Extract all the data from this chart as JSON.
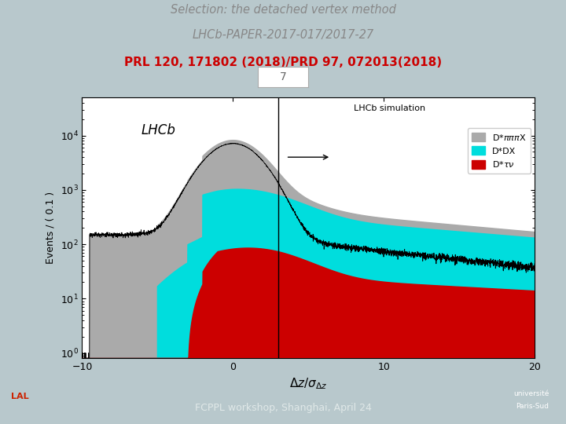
{
  "title_line1": "Selection: the detached vertex method",
  "title_line2": "LHCb-PAPER-2017-017/2017-27",
  "title_line3": "PRL 120, 171802 (2018)/PRD 97, 072013(2018)",
  "slide_number": "7",
  "footer_text": "FCPPL workshop, Shanghai, April 24",
  "slide_bg": "#b8c8cc",
  "title_color1": "#888888",
  "title_color2": "#cc0000",
  "footer_bg": "#7a9a9a",
  "footer_text_color": "#e0e8e8",
  "xlabel": "$\\Delta z/\\sigma_{\\Delta z}$",
  "ylabel": "Events / ( 0.1 )",
  "xmin": -10,
  "xmax": 20,
  "ymin": 0.8,
  "ymax": 50000,
  "vline_x": 3.0,
  "label_lhcb": "LHCb",
  "label_sim": "LHCb simulation",
  "legend_gray": "D*$\\pi\\pi\\pi$X",
  "legend_cyan": "D*DX",
  "legend_red": "D*$\\tau\\nu$",
  "color_gray": "#aaaaaa",
  "color_cyan": "#00dddd",
  "color_red": "#cc0000",
  "color_black": "#000000",
  "peak_sigma_gray": 1.6,
  "peak_amp_gray": 7000
}
